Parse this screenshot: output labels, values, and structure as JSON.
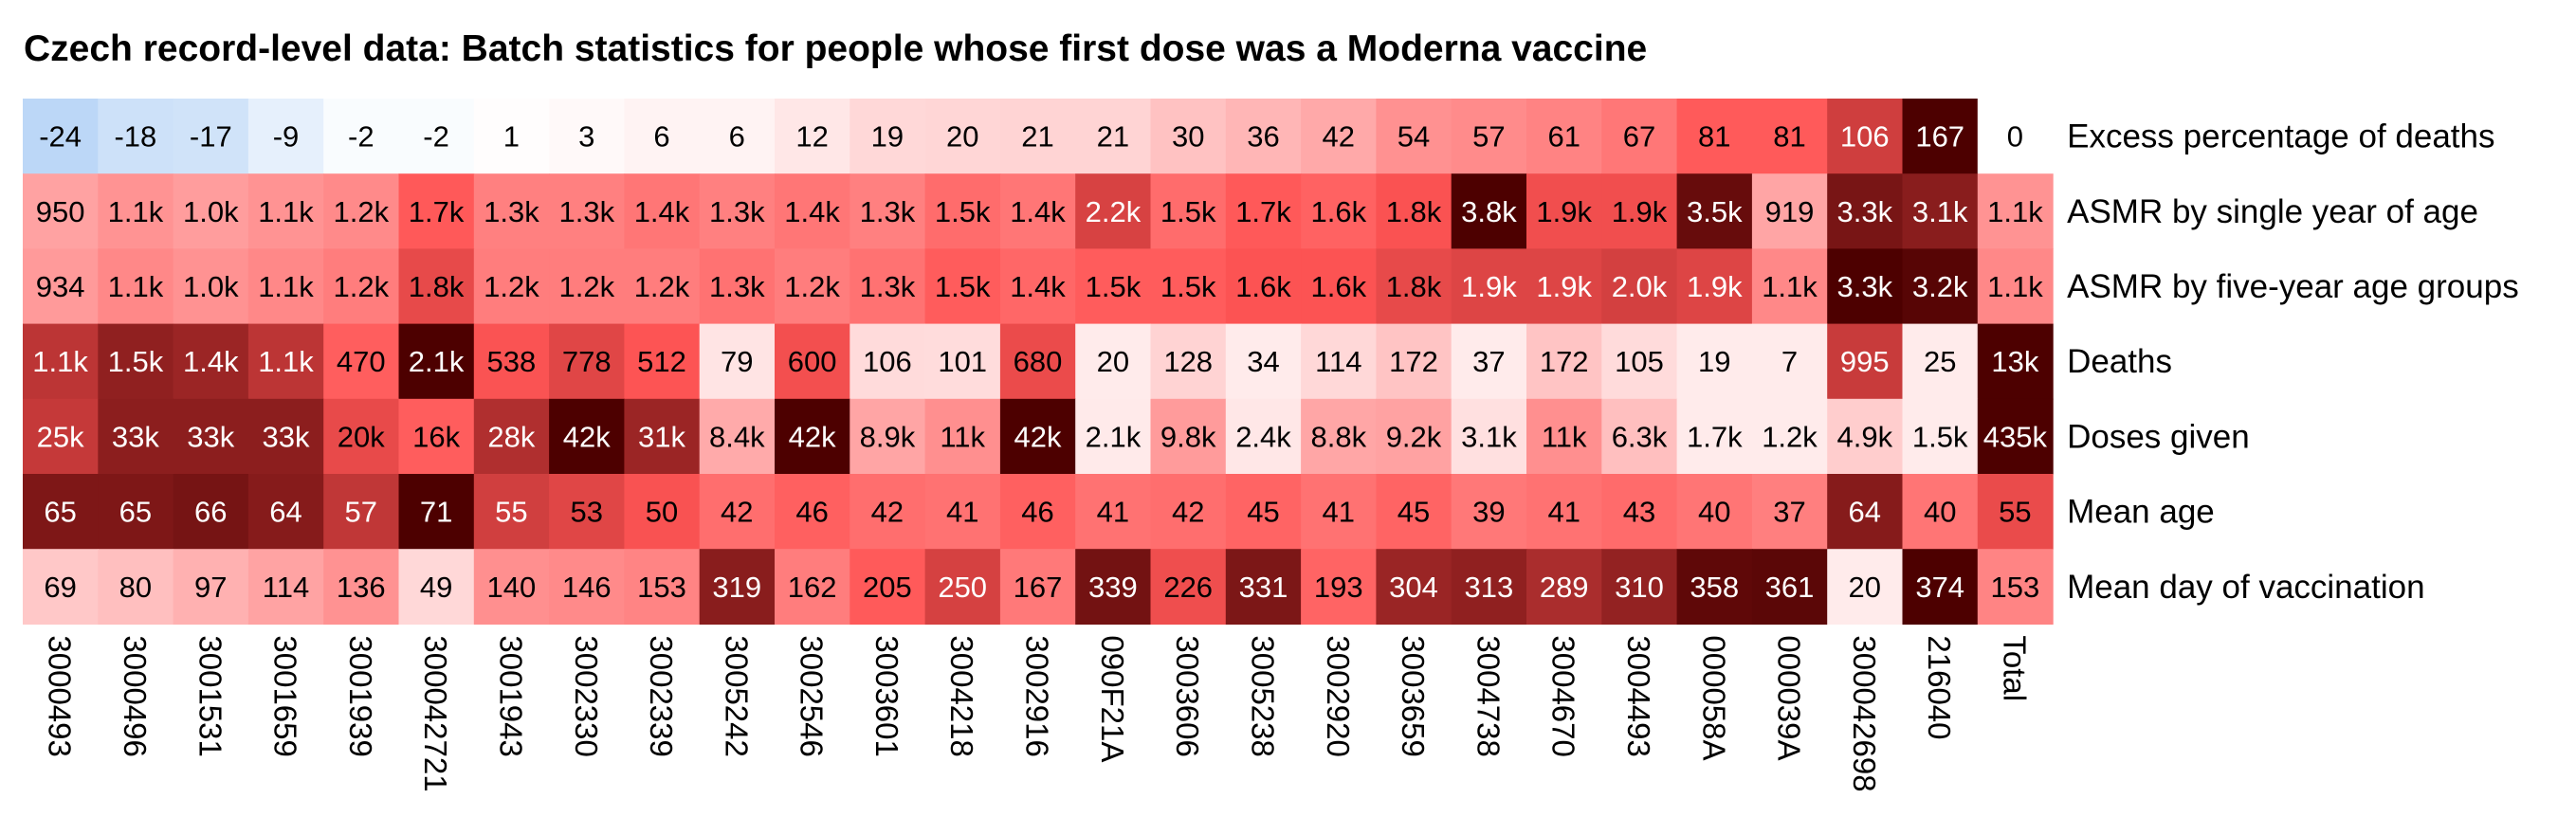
{
  "chart_data": {
    "type": "heatmap",
    "title": "Czech record-level data: Batch statistics for people whose first dose was a Moderna vaccine",
    "columns": [
      "3000493",
      "3000496",
      "3001531",
      "3001659",
      "3001939",
      "300042721",
      "3001943",
      "3002330",
      "3002339",
      "3005242",
      "3002546",
      "3003601",
      "3004218",
      "3002916",
      "090F21A",
      "3003606",
      "3005238",
      "3002920",
      "3003659",
      "3004738",
      "3004670",
      "3004493",
      "000058A",
      "000039A",
      "300042698",
      "216040",
      "Total"
    ],
    "rows": [
      {
        "name": "Excess percentage of deaths",
        "labels": [
          "-24",
          "-18",
          "-17",
          "-9",
          "-2",
          "-2",
          "1",
          "3",
          "6",
          "6",
          "12",
          "19",
          "20",
          "21",
          "21",
          "30",
          "36",
          "42",
          "54",
          "57",
          "61",
          "67",
          "81",
          "81",
          "106",
          "167",
          "0"
        ],
        "values": [
          -24,
          -18,
          -17,
          -9,
          -2,
          -2,
          1,
          3,
          6,
          6,
          12,
          19,
          20,
          21,
          21,
          30,
          36,
          42,
          54,
          57,
          61,
          67,
          81,
          81,
          106,
          167,
          0
        ]
      },
      {
        "name": "ASMR by single year of age",
        "labels": [
          "950",
          "1.1k",
          "1.0k",
          "1.1k",
          "1.2k",
          "1.7k",
          "1.3k",
          "1.3k",
          "1.4k",
          "1.3k",
          "1.4k",
          "1.3k",
          "1.5k",
          "1.4k",
          "2.2k",
          "1.5k",
          "1.7k",
          "1.6k",
          "1.8k",
          "3.8k",
          "1.9k",
          "1.9k",
          "3.5k",
          "919",
          "3.3k",
          "3.1k",
          "1.1k"
        ],
        "values": [
          950,
          1100,
          1000,
          1100,
          1200,
          1700,
          1300,
          1300,
          1400,
          1300,
          1400,
          1300,
          1500,
          1400,
          2200,
          1500,
          1700,
          1600,
          1800,
          3800,
          1900,
          1900,
          3500,
          919,
          3300,
          3100,
          1100
        ]
      },
      {
        "name": "ASMR by five-year age groups",
        "labels": [
          "934",
          "1.1k",
          "1.0k",
          "1.1k",
          "1.2k",
          "1.8k",
          "1.2k",
          "1.2k",
          "1.2k",
          "1.3k",
          "1.2k",
          "1.3k",
          "1.5k",
          "1.4k",
          "1.5k",
          "1.5k",
          "1.6k",
          "1.6k",
          "1.8k",
          "1.9k",
          "1.9k",
          "2.0k",
          "1.9k",
          "1.1k",
          "3.3k",
          "3.2k",
          "1.1k"
        ],
        "values": [
          934,
          1100,
          1000,
          1100,
          1200,
          1800,
          1200,
          1200,
          1200,
          1300,
          1200,
          1300,
          1500,
          1400,
          1500,
          1500,
          1600,
          1600,
          1800,
          1900,
          1900,
          2000,
          1900,
          1100,
          3300,
          3200,
          1100
        ]
      },
      {
        "name": "Deaths",
        "labels": [
          "1.1k",
          "1.5k",
          "1.4k",
          "1.1k",
          "470",
          "2.1k",
          "538",
          "778",
          "512",
          "79",
          "600",
          "106",
          "101",
          "680",
          "20",
          "128",
          "34",
          "114",
          "172",
          "37",
          "172",
          "105",
          "19",
          "7",
          "995",
          "25",
          "13k"
        ],
        "values": [
          1100,
          1500,
          1400,
          1100,
          470,
          2100,
          538,
          778,
          512,
          79,
          600,
          106,
          101,
          680,
          20,
          128,
          34,
          114,
          172,
          37,
          172,
          105,
          19,
          7,
          995,
          25,
          13000
        ]
      },
      {
        "name": "Doses given",
        "labels": [
          "25k",
          "33k",
          "33k",
          "33k",
          "20k",
          "16k",
          "28k",
          "42k",
          "31k",
          "8.4k",
          "42k",
          "8.9k",
          "11k",
          "42k",
          "2.1k",
          "9.8k",
          "2.4k",
          "8.8k",
          "9.2k",
          "3.1k",
          "11k",
          "6.3k",
          "1.7k",
          "1.2k",
          "4.9k",
          "1.5k",
          "435k"
        ],
        "values": [
          25000,
          33000,
          33000,
          33000,
          20000,
          16000,
          28000,
          42000,
          31000,
          8400,
          42000,
          8900,
          11000,
          42000,
          2100,
          9800,
          2400,
          8800,
          9200,
          3100,
          11000,
          6300,
          1700,
          1200,
          4900,
          1500,
          435000
        ]
      },
      {
        "name": "Mean age",
        "labels": [
          "65",
          "65",
          "66",
          "64",
          "57",
          "71",
          "55",
          "53",
          "50",
          "42",
          "46",
          "42",
          "41",
          "46",
          "41",
          "42",
          "45",
          "41",
          "45",
          "39",
          "41",
          "43",
          "40",
          "37",
          "64",
          "40",
          "55"
        ],
        "values": [
          65,
          65,
          66,
          64,
          57,
          71,
          55,
          53,
          50,
          42,
          46,
          42,
          41,
          46,
          41,
          42,
          45,
          41,
          45,
          39,
          41,
          43,
          40,
          37,
          64,
          40,
          55
        ]
      },
      {
        "name": "Mean day of vaccination",
        "labels": [
          "69",
          "80",
          "97",
          "114",
          "136",
          "49",
          "140",
          "146",
          "153",
          "319",
          "162",
          "205",
          "250",
          "167",
          "339",
          "226",
          "331",
          "193",
          "304",
          "313",
          "289",
          "310",
          "358",
          "361",
          "20",
          "374",
          "153"
        ],
        "values": [
          69,
          80,
          97,
          114,
          136,
          49,
          140,
          146,
          153,
          319,
          162,
          205,
          250,
          167,
          339,
          226,
          331,
          193,
          304,
          313,
          289,
          310,
          358,
          361,
          20,
          374,
          153
        ]
      }
    ],
    "colors": {
      "negative": "#bcd7f7",
      "zero": "#ffffff",
      "positive": "#ff5555",
      "max": "#4d0000"
    }
  }
}
